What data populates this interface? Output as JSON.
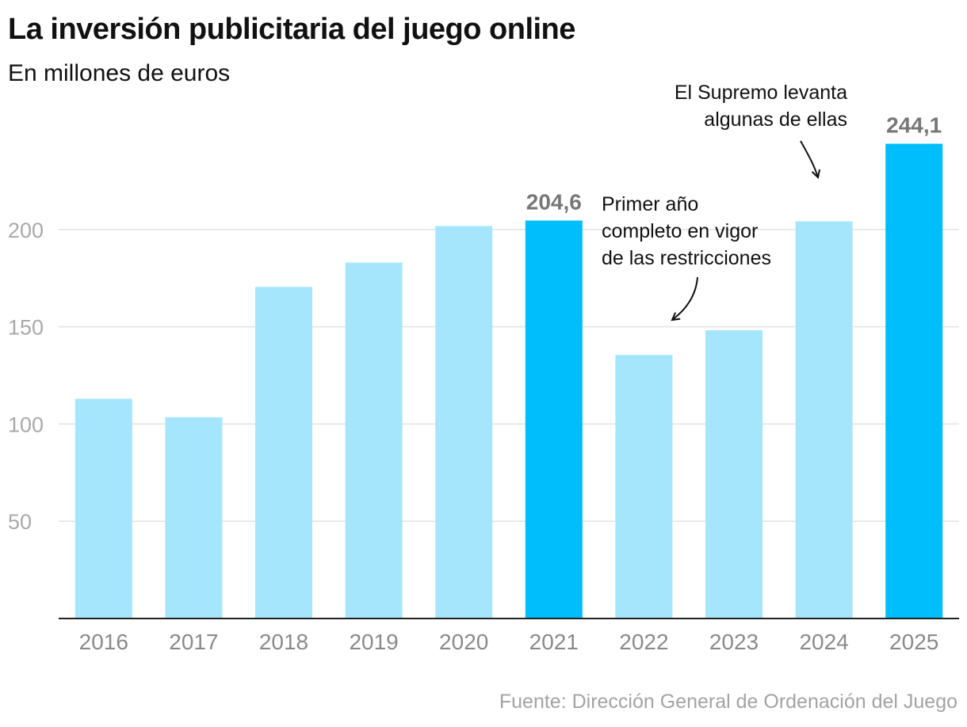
{
  "chart_data": {
    "type": "bar",
    "title": "La inversión publicitaria del juego online",
    "subtitle": "En millones de euros",
    "categories": [
      "2016",
      "2017",
      "2018",
      "2019",
      "2020",
      "2021",
      "2022",
      "2023",
      "2024",
      "2025"
    ],
    "values": [
      113,
      103.5,
      170.5,
      183,
      201.8,
      204.6,
      135.5,
      148.2,
      204.2,
      244.1
    ],
    "highlighted": [
      "2021",
      "2025"
    ],
    "value_labels": [
      {
        "category": "2021",
        "text": "204,6"
      },
      {
        "category": "2025",
        "text": "244,1"
      }
    ],
    "yticks": [
      50,
      100,
      150,
      200
    ],
    "ylim": [
      0,
      260
    ],
    "xlabel": "",
    "ylabel": "",
    "grid": true,
    "annotations": [
      {
        "category": "2022",
        "lines": [
          "Primer año",
          "completo en vigor",
          "de las restricciones"
        ]
      },
      {
        "category": "2024",
        "lines": [
          "El Supremo levanta",
          "algunas de ellas"
        ]
      }
    ],
    "source": "Fuente: Dirección General de Ordenación del Juego",
    "colors": {
      "bar": "#a6e6fd",
      "highlight": "#00bdfb",
      "grid": "#e2e2e2",
      "axis": "#222222"
    }
  }
}
